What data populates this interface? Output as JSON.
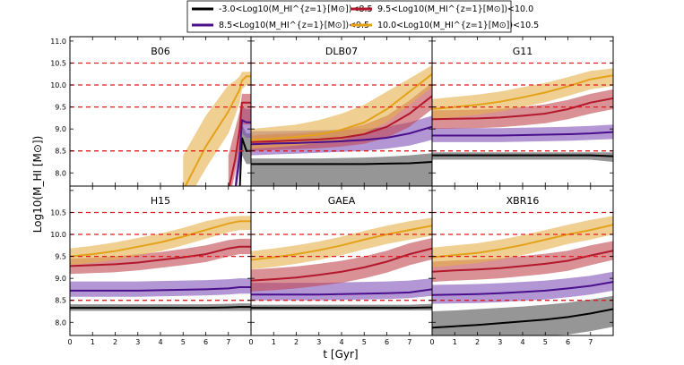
{
  "chart_data": {
    "type": "line",
    "xlabel": "t [Gyr]",
    "ylabel": "Log10(M_HI [M⊙])",
    "xlim": [
      0,
      8
    ],
    "ylim": [
      7.7,
      11.1
    ],
    "x_ticks": [
      "0",
      "1",
      "2",
      "3",
      "4",
      "5",
      "6",
      "7",
      "0",
      "1",
      "2",
      "3",
      "4",
      "5",
      "6",
      "7",
      "0",
      "1",
      "2",
      "3",
      "4",
      "5",
      "6",
      "7"
    ],
    "y_ticks_top": [
      "8.0",
      "8.5",
      "9.0",
      "9.5",
      "10.0",
      "10.5",
      "11.0"
    ],
    "y_ticks_bottom": [
      "8.0",
      "8.5",
      "9.0",
      "9.5",
      "10.0",
      "10.5"
    ],
    "reference_lines": [
      8.5,
      9.5,
      10.0,
      10.5
    ],
    "legend": [
      {
        "label": "-3.0<Log10(M_HI^{z=1}[M⊙])<8.5",
        "color": "#000000"
      },
      {
        "label": "8.5<Log10(M_HI^{z=1}[M⊙])<9.5",
        "color": "#4b0f8c"
      },
      {
        "label": "9.5<Log10(M_HI^{z=1}[M⊙])<10.0",
        "color": "#b2182b"
      },
      {
        "label": "10.0<Log10(M_HI^{z=1}[M⊙])<10.5",
        "color": "#e3a21a"
      }
    ],
    "band_colors": [
      "#505050",
      "#8052b8",
      "#c04850",
      "#e5b14a"
    ],
    "panels": [
      {
        "title": "B06",
        "x": [
          5.0,
          6.0,
          7.0,
          7.3,
          7.5,
          7.6,
          7.8,
          8.0
        ],
        "series": [
          {
            "name": "low",
            "median": [
              null,
              null,
              null,
              null,
              7.6,
              8.8,
              8.5,
              8.5
            ],
            "lo": [
              null,
              null,
              null,
              null,
              7.5,
              8.4,
              8.2,
              8.2
            ],
            "hi": [
              null,
              null,
              null,
              null,
              7.7,
              9.1,
              8.9,
              8.9
            ]
          },
          {
            "name": "mid",
            "median": [
              null,
              null,
              null,
              7.6,
              8.4,
              9.2,
              9.15,
              9.15
            ],
            "lo": [
              null,
              null,
              null,
              7.4,
              8.1,
              8.9,
              8.8,
              8.8
            ],
            "hi": [
              null,
              null,
              null,
              7.9,
              8.8,
              9.5,
              9.45,
              9.45
            ]
          },
          {
            "name": "high",
            "median": [
              null,
              null,
              7.6,
              8.3,
              9.0,
              9.6,
              9.6,
              9.6
            ],
            "lo": [
              null,
              null,
              7.3,
              8.0,
              8.6,
              9.1,
              9.1,
              9.1
            ],
            "hi": [
              null,
              7.6,
              8.4,
              9.0,
              9.4,
              9.8,
              9.8,
              9.8
            ]
          },
          {
            "name": "top",
            "median": [
              7.6,
              8.6,
              9.4,
              9.7,
              9.9,
              10.1,
              10.2,
              10.2
            ],
            "lo": [
              7.2,
              8.1,
              8.9,
              9.3,
              9.6,
              9.9,
              10.0,
              10.0
            ],
            "hi": [
              8.4,
              9.3,
              10.0,
              10.1,
              10.2,
              10.3,
              10.3,
              10.3
            ]
          }
        ]
      },
      {
        "title": "DLB07",
        "x": [
          0,
          1,
          2,
          3,
          4,
          5,
          6,
          7,
          8
        ],
        "series": [
          {
            "name": "low",
            "median": [
              8.2,
              8.2,
              8.2,
              8.2,
              8.2,
              8.2,
              8.21,
              8.22,
              8.25
            ],
            "lo": [
              7.7,
              7.7,
              7.7,
              7.7,
              7.7,
              7.7,
              7.7,
              7.7,
              7.7
            ],
            "hi": [
              8.33,
              8.33,
              8.33,
              8.33,
              8.34,
              8.35,
              8.37,
              8.4,
              8.45
            ]
          },
          {
            "name": "mid",
            "median": [
              8.65,
              8.67,
              8.68,
              8.7,
              8.72,
              8.75,
              8.8,
              8.9,
              9.05
            ],
            "lo": [
              8.4,
              8.42,
              8.44,
              8.46,
              8.48,
              8.5,
              8.55,
              8.62,
              8.75
            ],
            "hi": [
              8.95,
              8.95,
              8.96,
              8.97,
              8.98,
              9.0,
              9.05,
              9.15,
              9.3
            ]
          },
          {
            "name": "high",
            "median": [
              8.7,
              8.72,
              8.74,
              8.76,
              8.8,
              8.88,
              9.05,
              9.35,
              9.75
            ],
            "lo": [
              8.5,
              8.52,
              8.54,
              8.56,
              8.6,
              8.66,
              8.8,
              9.05,
              9.45
            ],
            "hi": [
              8.85,
              8.88,
              8.9,
              8.93,
              8.98,
              9.1,
              9.3,
              9.65,
              10.05
            ]
          },
          {
            "name": "top",
            "median": [
              8.75,
              8.78,
              8.82,
              8.88,
              8.98,
              9.15,
              9.45,
              9.85,
              10.25
            ],
            "lo": [
              8.55,
              8.58,
              8.62,
              8.68,
              8.75,
              8.9,
              9.15,
              9.55,
              9.95
            ],
            "hi": [
              9.0,
              9.05,
              9.1,
              9.2,
              9.35,
              9.55,
              9.85,
              10.15,
              10.45
            ]
          }
        ]
      },
      {
        "title": "G11",
        "x": [
          0,
          1,
          2,
          3,
          4,
          5,
          6,
          7,
          8
        ],
        "series": [
          {
            "name": "low",
            "median": [
              8.4,
              8.4,
              8.4,
              8.4,
              8.4,
              8.4,
              8.4,
              8.4,
              8.38
            ],
            "lo": [
              8.3,
              8.3,
              8.3,
              8.3,
              8.3,
              8.3,
              8.3,
              8.3,
              8.25
            ],
            "hi": [
              8.47,
              8.47,
              8.47,
              8.47,
              8.47,
              8.47,
              8.47,
              8.47,
              8.47
            ]
          },
          {
            "name": "mid",
            "median": [
              8.85,
              8.85,
              8.85,
              8.85,
              8.86,
              8.87,
              8.88,
              8.9,
              8.93
            ],
            "lo": [
              8.7,
              8.7,
              8.7,
              8.7,
              8.71,
              8.72,
              8.73,
              8.75,
              8.77
            ],
            "hi": [
              9.02,
              9.02,
              9.02,
              9.02,
              9.03,
              9.04,
              9.05,
              9.07,
              9.1
            ]
          },
          {
            "name": "high",
            "median": [
              9.22,
              9.23,
              9.24,
              9.26,
              9.3,
              9.35,
              9.45,
              9.6,
              9.7
            ],
            "lo": [
              9.0,
              9.01,
              9.02,
              9.04,
              9.08,
              9.13,
              9.22,
              9.35,
              9.45
            ],
            "hi": [
              9.42,
              9.43,
              9.44,
              9.46,
              9.5,
              9.56,
              9.66,
              9.8,
              9.9
            ]
          },
          {
            "name": "top",
            "median": [
              9.45,
              9.5,
              9.55,
              9.62,
              9.72,
              9.83,
              9.97,
              10.13,
              10.22
            ],
            "lo": [
              9.22,
              9.27,
              9.32,
              9.4,
              9.5,
              9.61,
              9.75,
              9.9,
              9.98
            ],
            "hi": [
              9.68,
              9.73,
              9.78,
              9.85,
              9.95,
              10.05,
              10.18,
              10.32,
              10.38
            ]
          }
        ]
      },
      {
        "title": "H15",
        "x": [
          0,
          1,
          2,
          3,
          4,
          5,
          6,
          7,
          7.5,
          8
        ],
        "series": [
          {
            "name": "low",
            "median": [
              8.33,
              8.33,
              8.33,
              8.33,
              8.33,
              8.33,
              8.33,
              8.34,
              8.35,
              8.35
            ],
            "lo": [
              8.26,
              8.26,
              8.26,
              8.26,
              8.26,
              8.26,
              8.26,
              8.26,
              8.26,
              8.26
            ],
            "hi": [
              8.41,
              8.41,
              8.41,
              8.41,
              8.41,
              8.41,
              8.41,
              8.42,
              8.43,
              8.43
            ]
          },
          {
            "name": "mid",
            "median": [
              8.72,
              8.72,
              8.72,
              8.72,
              8.73,
              8.74,
              8.75,
              8.77,
              8.8,
              8.8
            ],
            "lo": [
              8.58,
              8.58,
              8.58,
              8.58,
              8.59,
              8.6,
              8.61,
              8.63,
              8.65,
              8.65
            ],
            "hi": [
              8.93,
              8.93,
              8.93,
              8.93,
              8.94,
              8.95,
              8.96,
              8.98,
              9.0,
              9.0
            ]
          },
          {
            "name": "high",
            "median": [
              9.28,
              9.3,
              9.32,
              9.36,
              9.42,
              9.48,
              9.55,
              9.68,
              9.72,
              9.72
            ],
            "lo": [
              9.1,
              9.12,
              9.14,
              9.18,
              9.24,
              9.3,
              9.37,
              9.5,
              9.55,
              9.55
            ],
            "hi": [
              9.45,
              9.47,
              9.5,
              9.55,
              9.6,
              9.67,
              9.75,
              9.87,
              9.9,
              9.9
            ]
          },
          {
            "name": "top",
            "median": [
              9.5,
              9.55,
              9.62,
              9.72,
              9.82,
              9.95,
              10.1,
              10.25,
              10.3,
              10.3
            ],
            "lo": [
              9.3,
              9.35,
              9.42,
              9.52,
              9.62,
              9.75,
              9.9,
              10.05,
              10.1,
              10.1
            ],
            "hi": [
              9.68,
              9.74,
              9.82,
              9.92,
              10.02,
              10.15,
              10.3,
              10.4,
              10.42,
              10.42
            ]
          }
        ]
      },
      {
        "title": "GAEA",
        "x": [
          0,
          1,
          2,
          3,
          4,
          5,
          6,
          7,
          8
        ],
        "series": [
          {
            "name": "low",
            "median": [
              8.33,
              8.33,
              8.33,
              8.33,
              8.33,
              8.33,
              8.33,
              8.33,
              8.34
            ],
            "lo": [
              8.27,
              8.27,
              8.27,
              8.27,
              8.27,
              8.27,
              8.27,
              8.27,
              8.27
            ],
            "hi": [
              8.4,
              8.4,
              8.4,
              8.4,
              8.4,
              8.4,
              8.4,
              8.4,
              8.42
            ]
          },
          {
            "name": "mid",
            "median": [
              8.63,
              8.63,
              8.63,
              8.63,
              8.64,
              8.65,
              8.66,
              8.68,
              8.75
            ],
            "lo": [
              8.5,
              8.5,
              8.5,
              8.5,
              8.51,
              8.52,
              8.53,
              8.55,
              8.6
            ],
            "hi": [
              8.9,
              8.9,
              8.9,
              8.9,
              8.91,
              8.92,
              8.93,
              8.95,
              9.0
            ]
          },
          {
            "name": "high",
            "median": [
              8.95,
              8.98,
              9.02,
              9.08,
              9.15,
              9.25,
              9.38,
              9.55,
              9.68
            ],
            "lo": [
              8.7,
              8.73,
              8.77,
              8.83,
              8.9,
              9.0,
              9.13,
              9.3,
              9.43
            ],
            "hi": [
              9.2,
              9.23,
              9.27,
              9.33,
              9.4,
              9.5,
              9.63,
              9.8,
              9.92
            ]
          },
          {
            "name": "top",
            "median": [
              9.42,
              9.48,
              9.55,
              9.64,
              9.75,
              9.88,
              10.0,
              10.1,
              10.2
            ],
            "lo": [
              9.2,
              9.26,
              9.33,
              9.42,
              9.53,
              9.66,
              9.78,
              9.88,
              9.97
            ],
            "hi": [
              9.62,
              9.68,
              9.75,
              9.84,
              9.95,
              10.08,
              10.2,
              10.3,
              10.38
            ]
          }
        ]
      },
      {
        "title": "XBR16",
        "x": [
          0,
          1,
          2,
          3,
          4,
          5,
          6,
          7,
          8
        ],
        "series": [
          {
            "name": "low",
            "median": [
              7.88,
              7.91,
              7.94,
              7.98,
              8.02,
              8.06,
              8.12,
              8.2,
              8.3
            ],
            "lo": [
              7.7,
              7.7,
              7.7,
              7.7,
              7.7,
              7.7,
              7.72,
              7.8,
              7.9
            ],
            "hi": [
              8.25,
              8.27,
              8.3,
              8.33,
              8.36,
              8.4,
              8.45,
              8.52,
              8.6
            ]
          },
          {
            "name": "mid",
            "median": [
              8.62,
              8.63,
              8.64,
              8.66,
              8.69,
              8.72,
              8.77,
              8.83,
              8.92
            ],
            "lo": [
              8.42,
              8.43,
              8.44,
              8.46,
              8.49,
              8.52,
              8.57,
              8.63,
              8.72
            ],
            "hi": [
              8.85,
              8.86,
              8.87,
              8.89,
              8.92,
              8.95,
              9.0,
              9.06,
              9.15
            ]
          },
          {
            "name": "high",
            "median": [
              9.15,
              9.18,
              9.2,
              9.23,
              9.28,
              9.33,
              9.4,
              9.52,
              9.63
            ],
            "lo": [
              8.92,
              8.95,
              8.97,
              9.0,
              9.05,
              9.1,
              9.17,
              9.3,
              9.42
            ],
            "hi": [
              9.38,
              9.41,
              9.43,
              9.46,
              9.51,
              9.56,
              9.63,
              9.75,
              9.85
            ]
          },
          {
            "name": "top",
            "median": [
              9.48,
              9.53,
              9.58,
              9.66,
              9.76,
              9.88,
              10.0,
              10.1,
              10.22
            ],
            "lo": [
              9.25,
              9.3,
              9.35,
              9.43,
              9.53,
              9.65,
              9.78,
              9.88,
              10.0
            ],
            "hi": [
              9.7,
              9.75,
              9.8,
              9.88,
              9.98,
              10.1,
              10.22,
              10.33,
              10.42
            ]
          }
        ]
      }
    ]
  }
}
